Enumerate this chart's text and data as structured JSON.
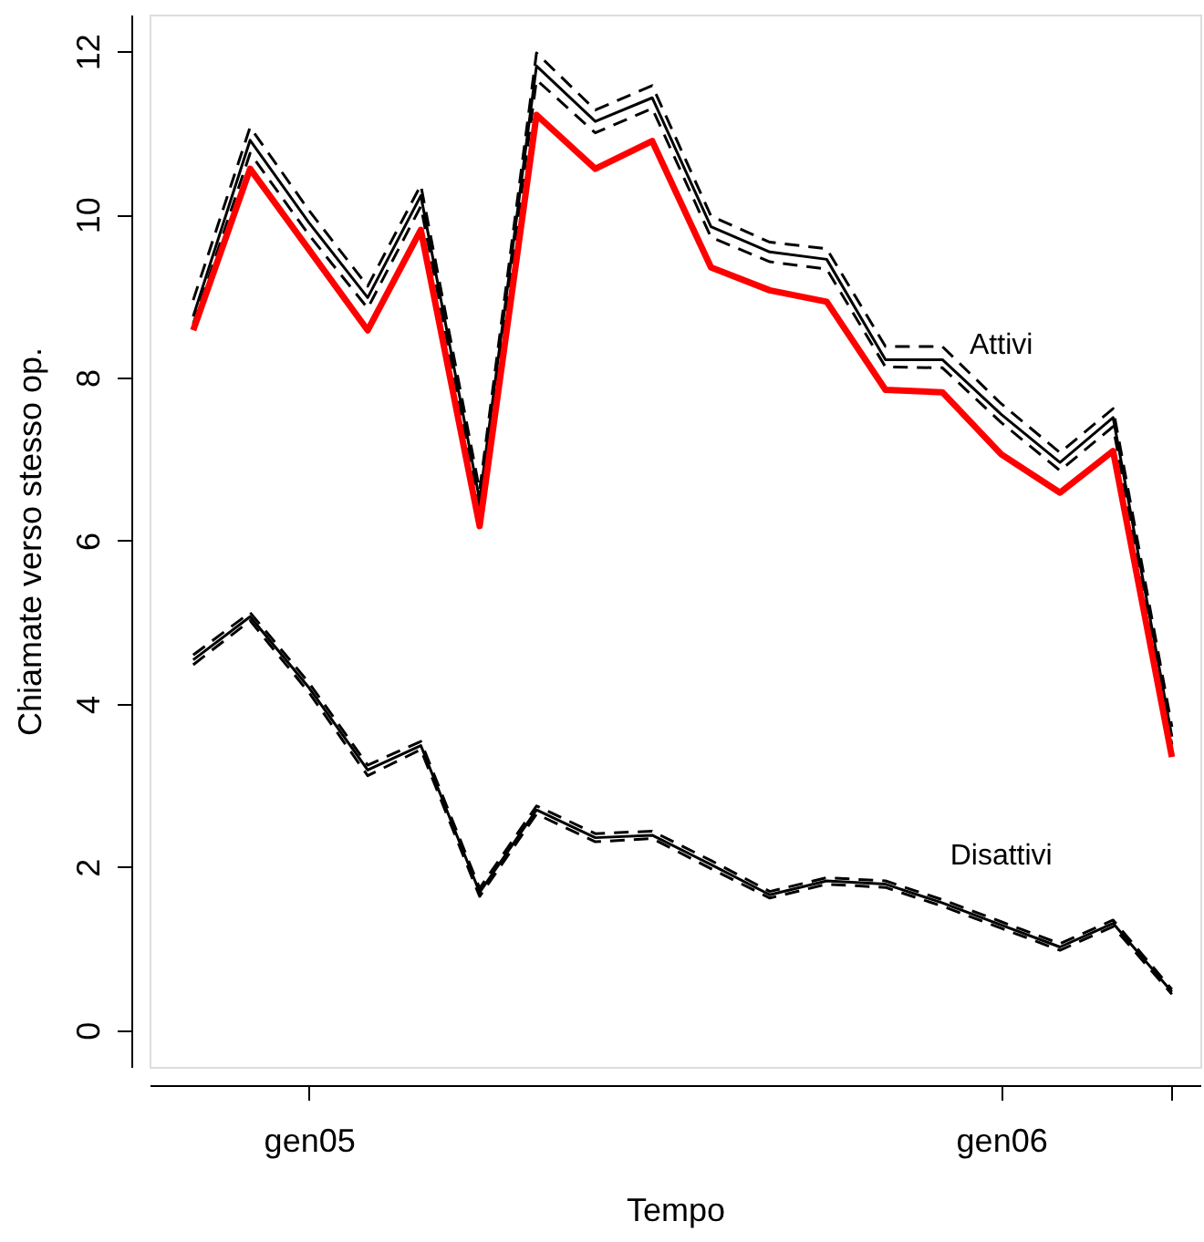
{
  "chart_data": {
    "type": "line",
    "xlabel": "Tempo",
    "ylabel": "Chiamate verso stesso op.",
    "x": [
      "2004-11",
      "2004-12",
      "2005-01",
      "2005-02",
      "2005-03",
      "2005-04",
      "2005-05",
      "2005-06",
      "2005-07",
      "2005-08",
      "2005-09",
      "2005-10",
      "2005-11",
      "2005-12",
      "2006-01",
      "2006-02",
      "2006-03",
      "2006-04"
    ],
    "series": [
      {
        "name": "Attivi",
        "color": "#000000",
        "line_style": "solid",
        "values": [
          8.75,
          10.91,
          9.9,
          8.98,
          10.23,
          6.5,
          11.82,
          11.14,
          11.43,
          9.85,
          9.54,
          9.45,
          8.22,
          8.22,
          7.55,
          6.96,
          7.51,
          3.6
        ]
      },
      {
        "color": "#000000",
        "line_style": "dashed",
        "values": [
          8.66,
          10.75,
          9.75,
          8.85,
          10.1,
          6.4,
          11.65,
          11.0,
          11.3,
          9.72,
          9.42,
          9.33,
          8.13,
          8.12,
          7.45,
          6.86,
          7.4,
          3.5
        ]
      },
      {
        "color": "#000000",
        "line_style": "dashed",
        "values": [
          8.95,
          11.07,
          10.05,
          9.12,
          10.36,
          6.62,
          11.98,
          11.28,
          11.58,
          9.98,
          9.66,
          9.58,
          8.38,
          8.38,
          7.68,
          7.08,
          7.62,
          3.72
        ]
      },
      {
        "color": "#ff0000",
        "line_style": "solid",
        "values": [
          8.58,
          10.56,
          9.57,
          8.58,
          9.81,
          6.18,
          11.22,
          10.56,
          10.9,
          9.35,
          9.07,
          8.93,
          7.85,
          7.82,
          7.06,
          6.59,
          7.1,
          3.35
        ]
      },
      {
        "name": "Disattivi",
        "color": "#000000",
        "line_style": "solid",
        "values": [
          4.54,
          5.07,
          4.2,
          3.19,
          3.49,
          1.69,
          2.7,
          2.36,
          2.39,
          2.03,
          1.66,
          1.83,
          1.79,
          1.56,
          1.29,
          1.02,
          1.31,
          0.47
        ]
      },
      {
        "color": "#000000",
        "line_style": "dashed",
        "values": [
          4.48,
          5.02,
          4.14,
          3.12,
          3.44,
          1.64,
          2.65,
          2.31,
          2.35,
          1.98,
          1.62,
          1.79,
          1.75,
          1.52,
          1.25,
          0.98,
          1.27,
          0.44
        ]
      },
      {
        "color": "#000000",
        "line_style": "dashed",
        "values": [
          4.6,
          5.12,
          4.26,
          3.25,
          3.54,
          1.74,
          2.75,
          2.41,
          2.44,
          2.08,
          1.7,
          1.87,
          1.83,
          1.6,
          1.33,
          1.06,
          1.35,
          0.5
        ]
      }
    ],
    "xlim": [
      "2004-10-09",
      "2006-04-16"
    ],
    "xticks": [
      {
        "value": "2005-01",
        "label": "gen05"
      },
      {
        "value": "2006-01",
        "label": "gen06"
      },
      {
        "value": "2006-04",
        "label": null
      }
    ],
    "ylim": [
      -0.45,
      12.45
    ],
    "yticks": [
      0,
      2,
      4,
      6,
      8,
      10,
      12
    ],
    "grid": false,
    "legend": false,
    "marker": "none"
  }
}
